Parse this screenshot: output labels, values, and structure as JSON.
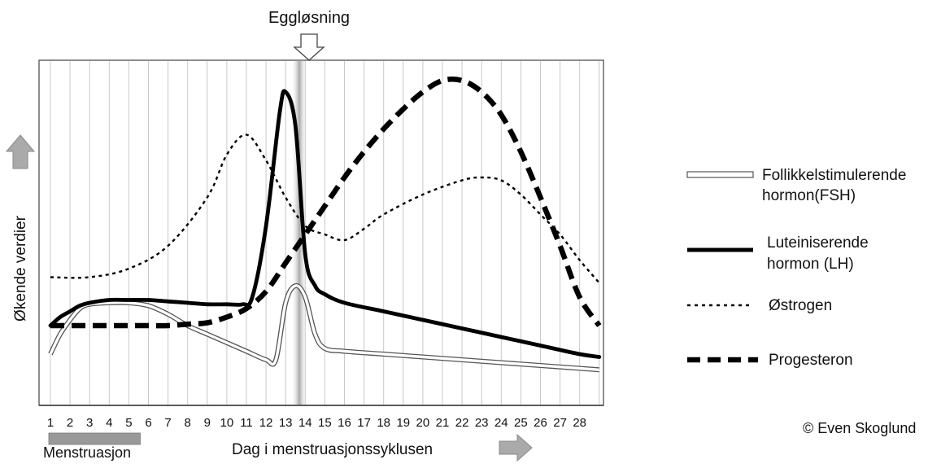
{
  "chart_data": {
    "type": "line",
    "title": "",
    "annotation_top": "Eggløsning",
    "xlabel": "Dag i menstruasjonssyklusen",
    "ylabel": "Økende verdier",
    "x_ticks": [
      "1",
      "2",
      "3",
      "4",
      "5",
      "6",
      "7",
      "8",
      "9",
      "10",
      "11",
      "12",
      "13",
      "14",
      "15",
      "16",
      "17",
      "18",
      "19",
      "20",
      "21",
      "22",
      "23",
      "24",
      "25",
      "26",
      "27",
      "28"
    ],
    "xlim": [
      0.85,
      29.3
    ],
    "ylim": [
      0,
      100
    ],
    "grid": "vertical",
    "legend_position": "right",
    "ovulation_day": 14,
    "menstruation_band": {
      "label": "Menstruasjon",
      "from_day": 1,
      "to_day": 5.5
    },
    "copyright": "© Even Skoglund",
    "colors": {
      "line": "#000000",
      "grid": "#c8c8c8",
      "band": "#999999",
      "arrow": "#aaaaaa"
    },
    "series": [
      {
        "name": "Follikkelstimulerende hormon(FSH)",
        "style": "double-line",
        "x": [
          1,
          1.5,
          2,
          2.5,
          3,
          4,
          5,
          6,
          7,
          8,
          9,
          10,
          11,
          12,
          12.5,
          13,
          13.5,
          14,
          14.5,
          15,
          16,
          18,
          20,
          22,
          24,
          26,
          28,
          29
        ],
        "y": [
          10,
          17,
          22,
          26,
          27.5,
          28,
          28,
          27,
          24,
          20,
          17,
          14,
          11,
          8,
          8,
          28,
          34,
          30,
          17,
          12,
          11,
          10,
          9,
          8,
          7,
          6,
          5,
          4.5
        ]
      },
      {
        "name": "Luteiniserende hormon (LH)",
        "style": "solid-thick",
        "x": [
          1,
          1.5,
          2,
          2.5,
          3,
          4,
          5,
          6,
          7,
          8,
          9,
          10,
          10.8,
          11.3,
          12,
          12.7,
          13,
          13.5,
          14,
          14.5,
          15,
          16,
          18,
          20,
          22,
          24,
          26,
          28,
          29
        ],
        "y": [
          20,
          23,
          25,
          27,
          28,
          29,
          29,
          29,
          28.5,
          28,
          27.5,
          27.5,
          27.5,
          30,
          55,
          95,
          102,
          90,
          45,
          34,
          31,
          28,
          25,
          22,
          19,
          16,
          13,
          10,
          9
        ]
      },
      {
        "name": "Østrogen",
        "style": "dotted",
        "x": [
          1,
          3,
          5,
          7,
          9,
          10,
          11,
          12,
          13,
          14,
          15,
          16,
          17,
          18,
          20,
          22,
          23,
          24,
          25,
          26,
          27,
          28,
          29
        ],
        "y": [
          37,
          37,
          40,
          48,
          65,
          80,
          87,
          78,
          65,
          55,
          52,
          50,
          54,
          59,
          66,
          71,
          72,
          71,
          66,
          59,
          52,
          43,
          35
        ]
      },
      {
        "name": "Progesteron",
        "style": "dashed-thick",
        "x": [
          1,
          2,
          3,
          4,
          5,
          6,
          7,
          8,
          9,
          10,
          11,
          12,
          13,
          14,
          15,
          16,
          17,
          18,
          19,
          20,
          21,
          22,
          23,
          24,
          25,
          26,
          27,
          28,
          29
        ],
        "y": [
          20,
          20,
          20,
          20,
          20,
          20,
          20,
          20.5,
          21,
          23,
          26,
          32,
          42,
          52,
          62,
          72,
          81,
          89,
          96,
          102,
          106,
          106,
          102,
          94,
          81,
          65,
          48,
          30,
          20
        ]
      }
    ]
  }
}
